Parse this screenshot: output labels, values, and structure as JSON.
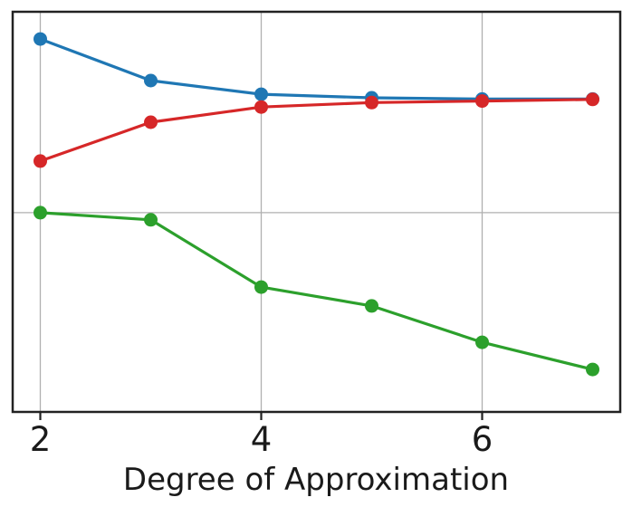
{
  "chart_data": {
    "type": "line",
    "title": "",
    "xlabel": "Degree of Approximation",
    "ylabel": "",
    "x": [
      2,
      3,
      4,
      5,
      6,
      7
    ],
    "xlim": [
      1.75,
      7.25
    ],
    "x_ticks": [
      2,
      4,
      6
    ],
    "x_tick_labels": [
      "2",
      "4",
      "6"
    ],
    "y_axis_note": "no y tick labels visible in screenshot; y values expressed as fraction of plot height measured from bottom axis (0 = bottom border, 1 = top border)",
    "ylim_frac": [
      0,
      1
    ],
    "series": [
      {
        "name": "blue",
        "color": "#1f77b4",
        "marker": "circle",
        "y_frac": [
          0.932,
          0.828,
          0.794,
          0.785,
          0.782,
          0.782
        ]
      },
      {
        "name": "red",
        "color": "#d62728",
        "marker": "circle",
        "y_frac": [
          0.627,
          0.724,
          0.762,
          0.773,
          0.777,
          0.781
        ]
      },
      {
        "name": "green",
        "color": "#2ca02c",
        "marker": "circle",
        "y_frac": [
          0.498,
          0.48,
          0.312,
          0.265,
          0.174,
          0.106
        ]
      }
    ],
    "v_gridlines_x": [
      2,
      4,
      6
    ],
    "h_gridlines_frac": [
      0.498
    ],
    "grid_on": true,
    "grid_color": "#b0b0b0",
    "axis_color": "#222222",
    "text_color": "#1a1a1a",
    "legend": "none"
  }
}
